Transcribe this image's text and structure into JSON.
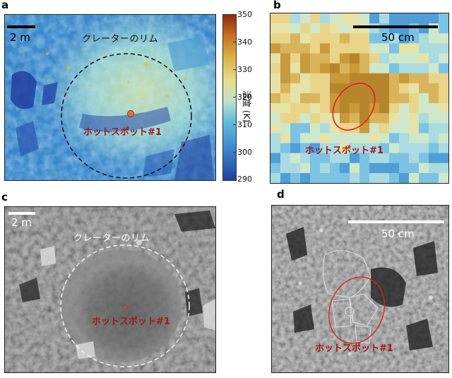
{
  "panels": {
    "a": {
      "letter": "a",
      "scale": "2 m",
      "rim_label": "クレーターのリム",
      "hotspot_label": "ホットスポット#1",
      "colorbar": {
        "title": "温度 (K)",
        "ticks": [
          "350",
          "340",
          "330",
          "320",
          "310",
          "300",
          "290"
        ],
        "min": 290,
        "max": 350
      }
    },
    "b": {
      "letter": "b",
      "scale": "50 cm",
      "hotspot_label": "ホットスポット#1"
    },
    "c": {
      "letter": "c",
      "scale": "2 m",
      "rim_label": "クレーターのリム",
      "hotspot_label": "ホットスポット#1"
    },
    "d": {
      "letter": "d",
      "scale": "50 cm",
      "hotspot_label": "ホットスポット#1"
    }
  },
  "colors": {
    "hotspot_red": "#a4151b",
    "ellipse_red": "#e02020"
  }
}
